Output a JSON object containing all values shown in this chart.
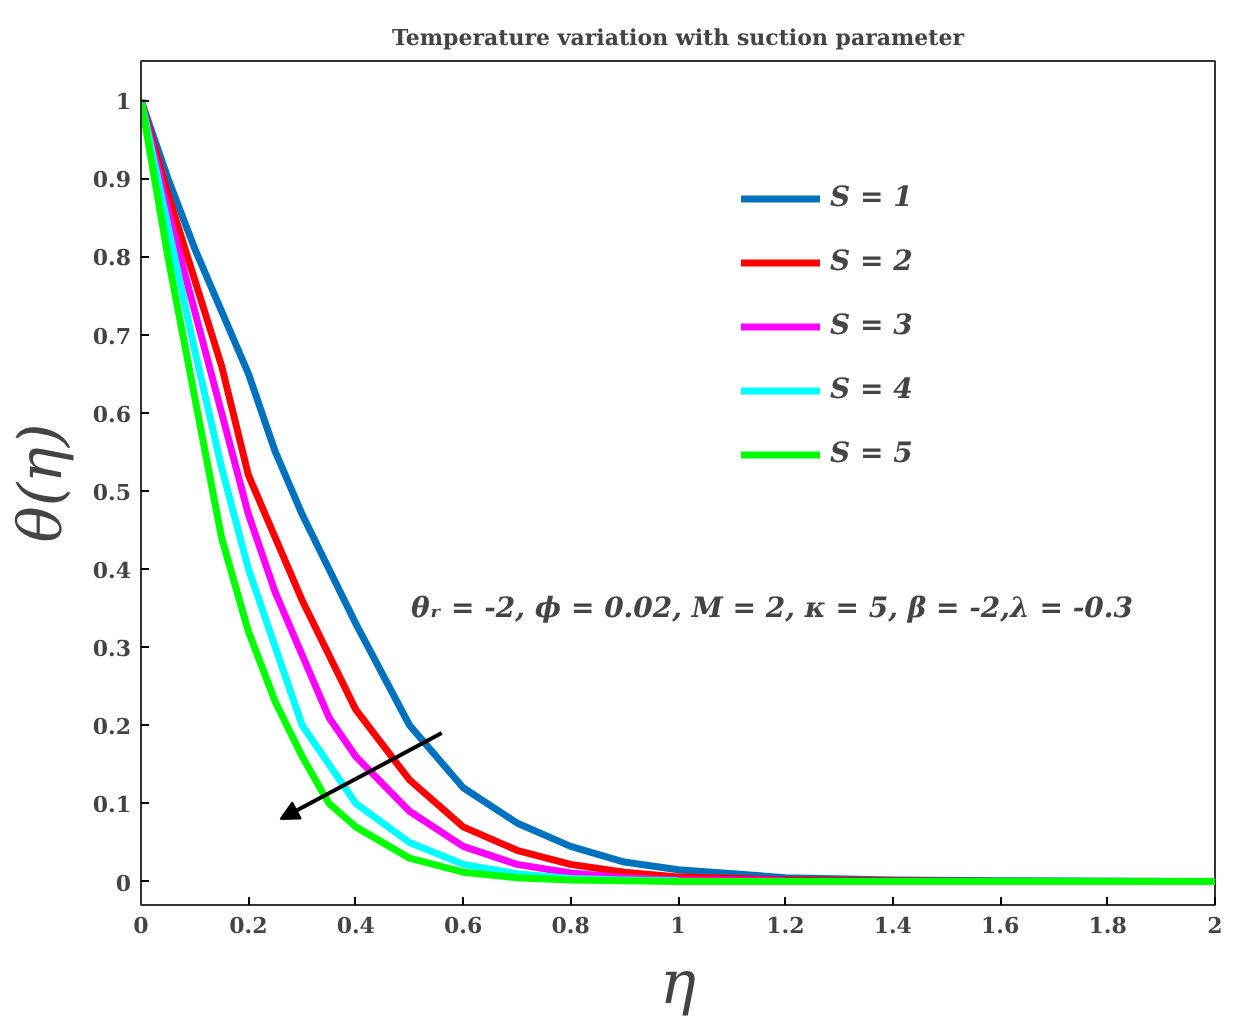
{
  "chart_data": {
    "type": "line",
    "title": "Temperature variation with suction parameter",
    "xlabel": "η",
    "ylabel": "θ(η)",
    "x": [
      0,
      0.05,
      0.1,
      0.15,
      0.2,
      0.25,
      0.3,
      0.35,
      0.4,
      0.5,
      0.6,
      0.7,
      0.8,
      0.9,
      1.0,
      1.2,
      1.4,
      1.6,
      2.0
    ],
    "series": [
      {
        "name": "S = 1",
        "color": "#0072bd",
        "values": [
          1,
          0.9,
          0.81,
          0.73,
          0.65,
          0.55,
          0.47,
          0.4,
          0.33,
          0.2,
          0.12,
          0.075,
          0.045,
          0.025,
          0.015,
          0.005,
          0.002,
          0.001,
          0
        ]
      },
      {
        "name": "S = 2",
        "color": "#ff0000",
        "values": [
          1,
          0.88,
          0.77,
          0.66,
          0.52,
          0.44,
          0.36,
          0.29,
          0.22,
          0.13,
          0.07,
          0.04,
          0.022,
          0.012,
          0.006,
          0.002,
          0.001,
          0,
          0
        ]
      },
      {
        "name": "S = 3",
        "color": "#ff00ff",
        "x": [
          0,
          0.05,
          0.1,
          0.15,
          0.2,
          0.25,
          0.3,
          0.35,
          0.4,
          0.5,
          0.6,
          0.7,
          0.8,
          0.9,
          1.0,
          1.2
        ],
        "values": [
          1,
          0.86,
          0.73,
          0.6,
          0.47,
          0.37,
          0.29,
          0.21,
          0.16,
          0.09,
          0.045,
          0.022,
          0.011,
          0.005,
          0.002,
          0.001
        ]
      },
      {
        "name": "S = 4",
        "color": "#00ffff",
        "x": [
          0,
          0.05,
          0.1,
          0.15,
          0.2,
          0.25,
          0.3,
          0.35,
          0.4,
          0.5,
          0.6,
          0.7,
          0.8,
          0.9,
          1.0
        ],
        "values": [
          1,
          0.84,
          0.68,
          0.53,
          0.4,
          0.3,
          0.2,
          0.15,
          0.1,
          0.05,
          0.022,
          0.01,
          0.004,
          0.002,
          0.001
        ]
      },
      {
        "name": "S = 5",
        "color": "#00ff00",
        "values": [
          1,
          0.8,
          0.62,
          0.44,
          0.32,
          0.23,
          0.16,
          0.1,
          0.07,
          0.03,
          0.012,
          0.005,
          0.002,
          0.001,
          0,
          0,
          0,
          0,
          0
        ]
      }
    ],
    "annotations": [
      "θᵣ = -2, ϕ = 0.02, M = 2, κ = 5, β = -2,λ = -0.3"
    ],
    "xlim": [
      0,
      2
    ],
    "ylim": [
      -0.03,
      1.05
    ],
    "xticks": [
      0,
      0.2,
      0.4,
      0.6,
      0.8,
      1,
      1.2,
      1.4,
      1.6,
      1.8,
      2
    ],
    "yticks": [
      0,
      0.1,
      0.2,
      0.3,
      0.4,
      0.5,
      0.6,
      0.7,
      0.8,
      0.9,
      1
    ],
    "grid": false,
    "legend": "top right",
    "line_style": "solid",
    "marker": "none"
  }
}
